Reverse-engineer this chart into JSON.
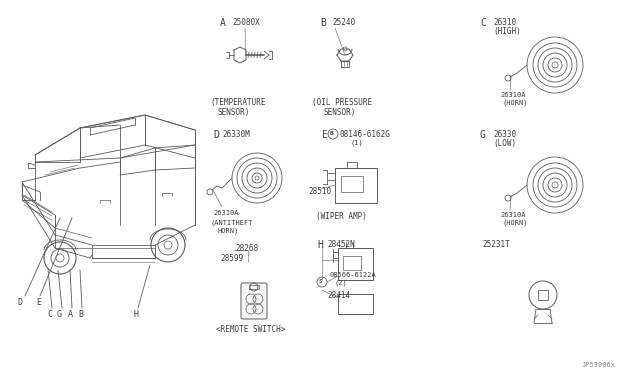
{
  "bg_color": "#ffffff",
  "line_color": "#5a5a5a",
  "text_color": "#3a3a3a",
  "fig_w": 6.4,
  "fig_h": 3.72,
  "dpi": 100,
  "footer": "JP53006x",
  "sections": {
    "A": {
      "label": "A",
      "part": "25080X",
      "caption1": "(TEMPERATURE",
      "caption2": "SENSOR)"
    },
    "B": {
      "label": "B",
      "part": "25240",
      "caption1": "(OIL PRESSURE",
      "caption2": "SENSOR)"
    },
    "C": {
      "label": "C",
      "part1": "26310",
      "part2": "(HIGH)",
      "part3": "26310A",
      "part4": "(HORN)"
    },
    "D": {
      "label": "D",
      "part1": "26330M",
      "part2": "26310A",
      "caption": "(ANTITHEFT",
      "caption2": "HORN)",
      "part3": "28268",
      "part4": "28599",
      "caption3": "<REMOTE SWITCH>"
    },
    "E": {
      "label": "E",
      "part1": "08146-6162G",
      "part2": "(1)",
      "part3": "28510",
      "caption": "(WIPER AMP)"
    },
    "G": {
      "label": "G",
      "part1": "26330",
      "part2": "(LOW)",
      "part3": "26310A",
      "part4": "(HORN)",
      "misc": "25231T"
    },
    "H": {
      "label": "H",
      "part1": "28452N",
      "part2": "08566-6122A",
      "part3": "(2)",
      "part4": "28414"
    }
  }
}
